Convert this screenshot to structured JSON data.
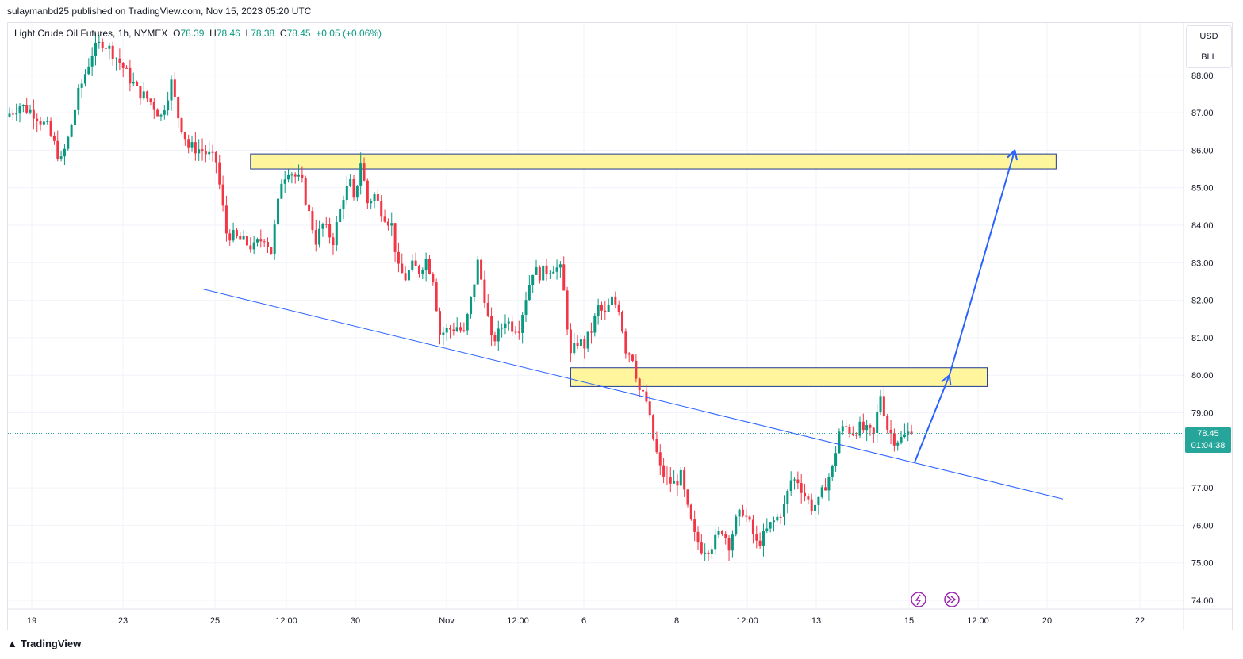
{
  "header": {
    "publisher": "sulaymanbd25 published on TradingView.com, Nov 15, 2023 05:20 UTC"
  },
  "legend": {
    "symbol": "Light Crude Oil Futures, 1h, NYMEX",
    "o_label": "O",
    "o_value": "78.39",
    "h_label": "H",
    "h_value": "78.46",
    "l_label": "L",
    "l_value": "78.38",
    "c_label": "C",
    "c_value": "78.45",
    "change": "+0.05 (+0.06%)"
  },
  "scale": {
    "currency": "USD",
    "unit": "BLL"
  },
  "last_price": {
    "price": "78.45",
    "countdown": "01:04:38"
  },
  "footer": {
    "brand": "TradingView"
  },
  "colors": {
    "up": "#089981",
    "down": "#f23645",
    "zone_fill": "#fff59d",
    "line": "#2962ff",
    "tag": "#26a69a"
  },
  "icons": [
    "lightning-icon",
    "fast-forward-icon"
  ],
  "chart_data": {
    "type": "candlestick",
    "title": "Light Crude Oil Futures, 1h, NYMEX",
    "ylim": [
      73.8,
      88.9
    ],
    "y_ticks": [
      "88.00",
      "87.00",
      "86.00",
      "85.00",
      "84.00",
      "83.00",
      "82.00",
      "81.00",
      "80.00",
      "79.00",
      "77.00",
      "76.00",
      "75.00",
      "74.00"
    ],
    "x_ticks": [
      "19",
      "23",
      "25",
      "12:00",
      "30",
      "Nov",
      "12:00",
      "6",
      "8",
      "12:00",
      "13",
      "15",
      "12:00",
      "20",
      "22"
    ],
    "price_path": [
      [
        0,
        86.9
      ],
      [
        4,
        87.2
      ],
      [
        8,
        87.0
      ],
      [
        12,
        86.6
      ],
      [
        16,
        85.7
      ],
      [
        18,
        86.3
      ],
      [
        21,
        87.5
      ],
      [
        25,
        88.6
      ],
      [
        28,
        88.9
      ],
      [
        31,
        88.6
      ],
      [
        34,
        88.2
      ],
      [
        38,
        87.6
      ],
      [
        42,
        87.3
      ],
      [
        45,
        86.9
      ],
      [
        48,
        87.8
      ],
      [
        50,
        86.9
      ],
      [
        53,
        86.1
      ],
      [
        57,
        86.0
      ],
      [
        61,
        85.7
      ],
      [
        64,
        83.8
      ],
      [
        68,
        83.6
      ],
      [
        72,
        83.4
      ],
      [
        75,
        83.7
      ],
      [
        77,
        83.3
      ],
      [
        80,
        85.2
      ],
      [
        82,
        85.5
      ],
      [
        84,
        85.3
      ],
      [
        86,
        85.1
      ],
      [
        88,
        84.3
      ],
      [
        90,
        83.6
      ],
      [
        92,
        84.0
      ],
      [
        95,
        83.6
      ],
      [
        98,
        84.8
      ],
      [
        100,
        85.1
      ],
      [
        101,
        84.6
      ],
      [
        103,
        85.7
      ],
      [
        105,
        84.6
      ],
      [
        107,
        84.8
      ],
      [
        109,
        84.4
      ],
      [
        112,
        84.0
      ],
      [
        114,
        82.8
      ],
      [
        116,
        82.6
      ],
      [
        118,
        82.9
      ],
      [
        120,
        82.8
      ],
      [
        122,
        83.1
      ],
      [
        124,
        82.6
      ],
      [
        126,
        81.1
      ],
      [
        128,
        81.2
      ],
      [
        131,
        81.3
      ],
      [
        133,
        81.1
      ],
      [
        135,
        82.0
      ],
      [
        137,
        83.0
      ],
      [
        139,
        82.1
      ],
      [
        141,
        80.9
      ],
      [
        143,
        81.1
      ],
      [
        145,
        81.5
      ],
      [
        147,
        81.3
      ],
      [
        149,
        81.3
      ],
      [
        151,
        82.1
      ],
      [
        153,
        82.8
      ],
      [
        155,
        82.7
      ],
      [
        157,
        82.8
      ],
      [
        159,
        82.9
      ],
      [
        161,
        82.8
      ],
      [
        162,
        82.2
      ],
      [
        164,
        80.5
      ],
      [
        166,
        80.9
      ],
      [
        168,
        80.8
      ],
      [
        170,
        81.2
      ],
      [
        172,
        81.8
      ],
      [
        174,
        81.6
      ],
      [
        176,
        82.0
      ],
      [
        178,
        81.8
      ],
      [
        180,
        80.7
      ],
      [
        182,
        80.5
      ],
      [
        184,
        79.6
      ],
      [
        186,
        79.3
      ],
      [
        188,
        78.3
      ],
      [
        190,
        77.5
      ],
      [
        192,
        77.2
      ],
      [
        194,
        77.1
      ],
      [
        196,
        77.3
      ],
      [
        198,
        76.4
      ],
      [
        200,
        75.7
      ],
      [
        202,
        75.4
      ],
      [
        204,
        75.4
      ],
      [
        206,
        75.6
      ],
      [
        208,
        75.9
      ],
      [
        210,
        75.5
      ],
      [
        212,
        76.1
      ],
      [
        214,
        76.4
      ],
      [
        216,
        76.0
      ],
      [
        218,
        75.5
      ],
      [
        220,
        75.7
      ],
      [
        222,
        76.0
      ],
      [
        224,
        76.2
      ],
      [
        226,
        76.5
      ],
      [
        228,
        77.2
      ],
      [
        230,
        77.2
      ],
      [
        232,
        76.8
      ],
      [
        234,
        76.5
      ],
      [
        236,
        76.6
      ],
      [
        238,
        77.1
      ],
      [
        240,
        77.5
      ],
      [
        242,
        78.5
      ],
      [
        244,
        78.6
      ],
      [
        246,
        78.5
      ],
      [
        248,
        78.6
      ],
      [
        250,
        78.5
      ],
      [
        252,
        78.4
      ],
      [
        254,
        79.5
      ],
      [
        256,
        78.6
      ],
      [
        258,
        78.3
      ],
      [
        260,
        78.3
      ],
      [
        262,
        78.45
      ]
    ],
    "zones": [
      {
        "start_bar": 70,
        "end_bar": 304,
        "top": 85.9,
        "bottom": 85.5
      },
      {
        "start_bar": 163,
        "end_bar": 284,
        "top": 80.2,
        "bottom": 79.7
      }
    ],
    "trendline": {
      "start_bar": 56,
      "start_price": 82.3,
      "end_bar": 306,
      "end_price": 76.7
    },
    "projection": [
      {
        "bar": 263,
        "price": 77.7
      },
      {
        "bar": 273,
        "price": 80.0
      },
      {
        "bar": 292,
        "price": 86.0
      }
    ],
    "last_price": 78.45
  }
}
